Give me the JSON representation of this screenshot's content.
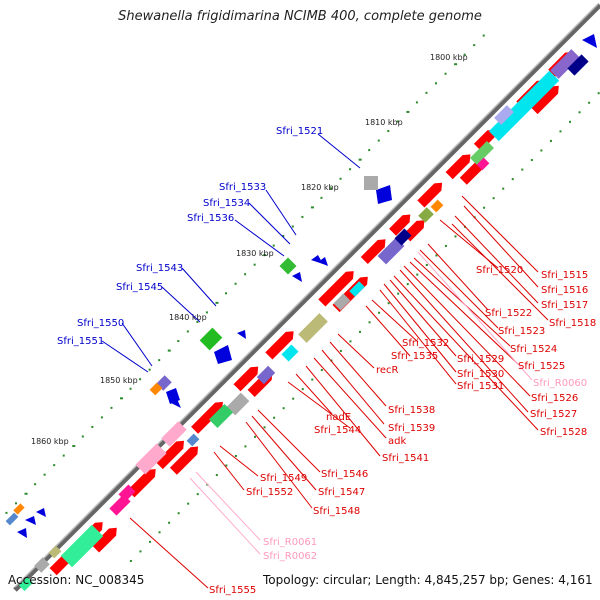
{
  "title": "Shewanella frigidimarina NCIMB 400, complete genome",
  "footer": {
    "accession": "Accession: NC_008345",
    "summary": "Topology: circular; Length: 4,845,257 bp; Genes: 4,161"
  },
  "colors": {
    "backbone": "#888888",
    "forward_gene": "#ff0000",
    "reverse_gene": "#0000dd",
    "ticks": "#2a8a2a",
    "label_red": "#dd0000",
    "label_blue": "#0000cc",
    "label_pink": "#ff99bb"
  },
  "kbp_markers": [
    "1800 kbp",
    "1810 kbp",
    "1820 kbp",
    "1830 kbp",
    "1840 kbp",
    "1850 kbp",
    "1860 kbp"
  ],
  "labels_blue": [
    "Sfri_1521",
    "Sfri_1533",
    "Sfri_1534",
    "Sfri_1536",
    "Sfri_1543",
    "Sfri_1545",
    "Sfri_1550",
    "Sfri_1551"
  ],
  "labels_red_right": [
    "Sfri_1515",
    "Sfri_1516",
    "Sfri_1517",
    "Sfri_1518",
    "Sfri_1520",
    "Sfri_1522",
    "Sfri_1523",
    "Sfri_1524",
    "Sfri_1525",
    "Sfri_R0060",
    "Sfri_1526",
    "Sfri_1527",
    "Sfri_1528",
    "Sfri_1529",
    "Sfri_1530",
    "Sfri_1531",
    "Sfri_1532",
    "Sfri_1535",
    "recR",
    "Sfri_1538",
    "Sfri_1539",
    "adk",
    "Sfri_1541",
    "nadE",
    "Sfri_1544",
    "Sfri_1546",
    "Sfri_1547",
    "Sfri_1548",
    "Sfri_1549",
    "Sfri_1552",
    "Sfri_R0061",
    "Sfri_R0062",
    "Sfri_1555"
  ]
}
